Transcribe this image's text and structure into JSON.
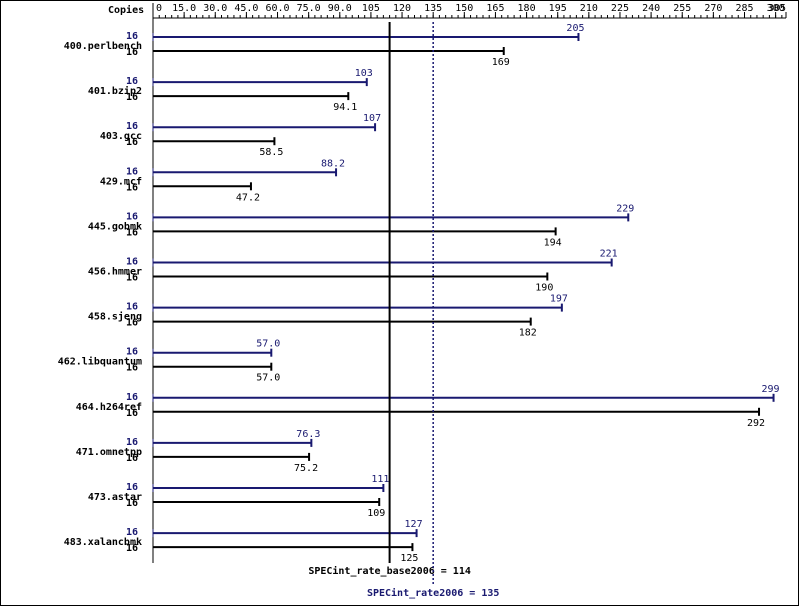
{
  "chart_data": {
    "type": "bar",
    "orientation": "horizontal",
    "header_label": "Copies",
    "xlim": [
      0,
      305
    ],
    "ticks": [
      "0",
      "15.0",
      "30.0",
      "45.0",
      "60.0",
      "75.0",
      "90.0",
      "105",
      "120",
      "135",
      "150",
      "165",
      "180",
      "195",
      "210",
      "225",
      "240",
      "255",
      "270",
      "285",
      "300",
      "305"
    ],
    "tick_values": [
      0,
      15,
      30,
      45,
      60,
      75,
      90,
      105,
      120,
      135,
      150,
      165,
      180,
      195,
      210,
      225,
      240,
      255,
      270,
      285,
      300,
      305
    ],
    "categories": [
      "400.perlbench",
      "401.bzip2",
      "403.gcc",
      "429.mcf",
      "445.gobmk",
      "456.hmmer",
      "458.sjeng",
      "462.libquantum",
      "464.h264ref",
      "471.omnetpp",
      "473.astar",
      "483.xalancbmk"
    ],
    "series": [
      {
        "name": "SPECint_rate2006",
        "color": "#191970",
        "copies": [
          "16",
          "16",
          "16",
          "16",
          "16",
          "16",
          "16",
          "16",
          "16",
          "16",
          "16",
          "16"
        ],
        "values": [
          205,
          103,
          107,
          88.2,
          229,
          221,
          197,
          57.0,
          299,
          76.3,
          111,
          127
        ],
        "labels": [
          "205",
          "103",
          "107",
          "88.2",
          "229",
          "221",
          "197",
          "57.0",
          "299",
          "76.3",
          "111",
          "127"
        ]
      },
      {
        "name": "SPECint_rate_base2006",
        "color": "#000000",
        "copies": [
          "16",
          "16",
          "16",
          "16",
          "16",
          "16",
          "16",
          "16",
          "16",
          "16",
          "16",
          "16"
        ],
        "values": [
          169,
          94.1,
          58.5,
          47.2,
          194,
          190,
          182,
          57.0,
          292,
          75.2,
          109,
          125
        ],
        "labels": [
          "169",
          "94.1",
          "58.5",
          "47.2",
          "194",
          "190",
          "182",
          "57.0",
          "292",
          "75.2",
          "109",
          "125"
        ]
      }
    ],
    "reference_lines": [
      {
        "label": "SPECint_rate_base2006 = 114",
        "value": 114,
        "style": "solid",
        "color": "#000000"
      },
      {
        "label": "SPECint_rate2006 = 135",
        "value": 135,
        "style": "dotted",
        "color": "#191970"
      }
    ]
  }
}
